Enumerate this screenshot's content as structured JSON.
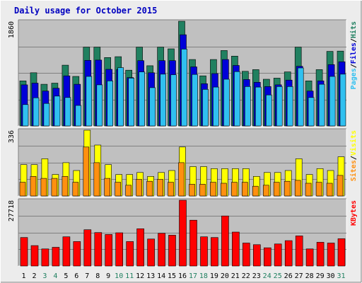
{
  "title": "Daily usage for October 2015",
  "colors": {
    "title": "#0000c0",
    "panel_bg": "#c0c0c0",
    "hits": "#208060",
    "files": "#0000d8",
    "pages": "#30c0f0",
    "visits": "#ffff00",
    "sites": "#ff9010",
    "kbytes": "#ff0000",
    "day_weekday": "#000000",
    "day_weekend": "#208060"
  },
  "chart_data": {
    "type": "bar",
    "days": [
      1,
      2,
      3,
      4,
      5,
      6,
      7,
      8,
      9,
      10,
      11,
      12,
      13,
      14,
      15,
      16,
      17,
      18,
      19,
      20,
      21,
      22,
      23,
      24,
      25,
      26,
      27,
      28,
      29,
      30,
      31
    ],
    "weekend_days": [
      3,
      4,
      10,
      11,
      17,
      18,
      24,
      25,
      31
    ],
    "panels": [
      {
        "key": "hits",
        "max_label": "1860",
        "ymax": 1860,
        "legend": [
          {
            "text": "Pages",
            "color": "#30c0f0"
          },
          {
            "text": "/",
            "color": "#000000"
          },
          {
            "text": "Files",
            "color": "#0000d8"
          },
          {
            "text": "/",
            "color": "#000000"
          },
          {
            "text": "Hits",
            "color": "#208060"
          }
        ],
        "series": [
          {
            "name": "Hits",
            "color": "#208060",
            "values": [
              800,
              945,
              740,
              760,
              1080,
              880,
              1400,
              1400,
              1215,
              1230,
              990,
              1400,
              1070,
              1400,
              1370,
              1860,
              1180,
              890,
              1180,
              1340,
              1240,
              970,
              1000,
              830,
              850,
              960,
              1400,
              800,
              1000,
              1325,
              1330
            ]
          },
          {
            "name": "Files",
            "color": "#0000d8",
            "values": [
              730,
              760,
              620,
              670,
              890,
              740,
              1165,
              1170,
              1005,
              1000,
              860,
              1160,
              945,
              1160,
              1160,
              1620,
              1050,
              750,
              930,
              1180,
              1075,
              825,
              775,
              700,
              730,
              815,
              1060,
              620,
              800,
              1090,
              1140
            ]
          },
          {
            "name": "Pages",
            "color": "#30c0f0",
            "values": [
              380,
              500,
              400,
              530,
              505,
              365,
              880,
              730,
              800,
              1035,
              850,
              960,
              680,
              920,
              910,
              1365,
              915,
              650,
              690,
              830,
              965,
              700,
              690,
              550,
              700,
              700,
              1030,
              505,
              740,
              880,
              920
            ]
          }
        ]
      },
      {
        "key": "visits",
        "max_label": "336",
        "ymax": 336,
        "legend": [
          {
            "text": "Sites",
            "color": "#ff9010"
          },
          {
            "text": "/",
            "color": "#000000"
          },
          {
            "text": "Visits",
            "color": "#ffff00"
          }
        ],
        "series": [
          {
            "name": "Visits",
            "color": "#ffff00",
            "values": [
              160,
              160,
              190,
              110,
              170,
              130,
              336,
              260,
              160,
              110,
              110,
              120,
              100,
              120,
              130,
              250,
              150,
              150,
              140,
              140,
              140,
              140,
              100,
              120,
              120,
              130,
              190,
              110,
              140,
              130,
              200
            ]
          },
          {
            "name": "Sites",
            "color": "#ff9010",
            "values": [
              70,
              100,
              90,
              90,
              100,
              70,
              250,
              170,
              90,
              70,
              55,
              85,
              75,
              85,
              70,
              170,
              60,
              60,
              70,
              65,
              70,
              70,
              50,
              55,
              70,
              75,
              80,
              65,
              70,
              65,
              105
            ]
          }
        ]
      },
      {
        "key": "kbytes",
        "max_label": "27718",
        "ymax": 27718,
        "legend": [
          {
            "text": "KBytes",
            "color": "#ff0000"
          }
        ],
        "series": [
          {
            "name": "KBytes",
            "color": "#ff0000",
            "values": [
              12000,
              8600,
              7200,
              7900,
              12300,
              10300,
              15300,
              14100,
              13300,
              14000,
              10300,
              15700,
              11400,
              13800,
              13000,
              27718,
              19300,
              12300,
              12000,
              21100,
              14300,
              9700,
              9000,
              7700,
              9300,
              10700,
              12700,
              7200,
              10000,
              9700,
              11500
            ]
          }
        ]
      }
    ]
  }
}
